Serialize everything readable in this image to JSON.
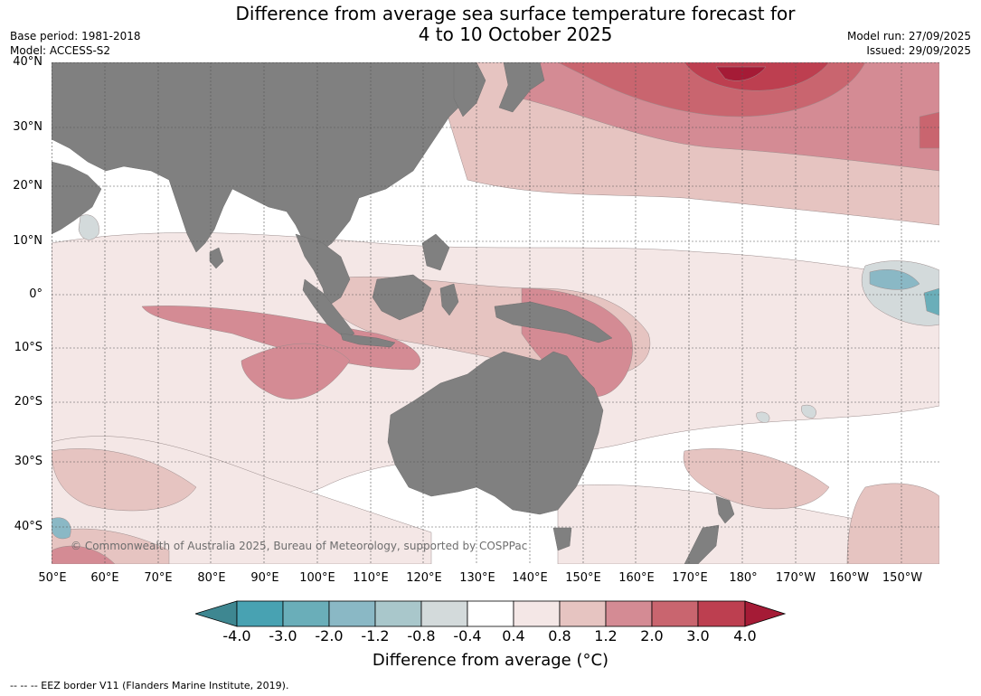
{
  "header": {
    "title_line1": "Difference from average sea surface temperature forecast for",
    "title_line2": "4 to 10 October 2025",
    "base_period": "Base period: 1981-2018",
    "model": "Model: ACCESS-S2",
    "model_run": "Model run: 27/09/2025",
    "issued": "Issued: 29/09/2025"
  },
  "map": {
    "lat_labels": [
      "40°N",
      "30°N",
      "20°N",
      "10°N",
      "0°",
      "10°S",
      "20°S",
      "30°S",
      "40°S"
    ],
    "lon_labels": [
      "50°E",
      "60°E",
      "70°E",
      "80°E",
      "90°E",
      "100°E",
      "110°E",
      "120°E",
      "130°E",
      "140°E",
      "150°E",
      "160°E",
      "170°E",
      "180°",
      "170°W",
      "160°W",
      "150°W"
    ],
    "copyright": "© Commonwealth of Australia 2025, Bureau of Meteorology, supported by COSPPac",
    "land_color": "#808080"
  },
  "colorbar": {
    "ticks": [
      "-4.0",
      "-3.0",
      "-2.0",
      "-1.2",
      "-0.8",
      "-0.4",
      "0.4",
      "0.8",
      "1.2",
      "2.0",
      "3.0",
      "4.0"
    ],
    "colors": [
      "#3e8791",
      "#48a2b2",
      "#6aaeb9",
      "#8ab8c5",
      "#a9c7cb",
      "#d3dadb",
      "#ffffff",
      "#f4e7e6",
      "#e6c4c1",
      "#d48b94",
      "#c9656f",
      "#bd3f50",
      "#a51b36"
    ],
    "label": "Difference from average (°C)"
  },
  "footer": {
    "text": "--  --  -- EEZ border V11 (Flanders Marine Institute, 2019)."
  }
}
